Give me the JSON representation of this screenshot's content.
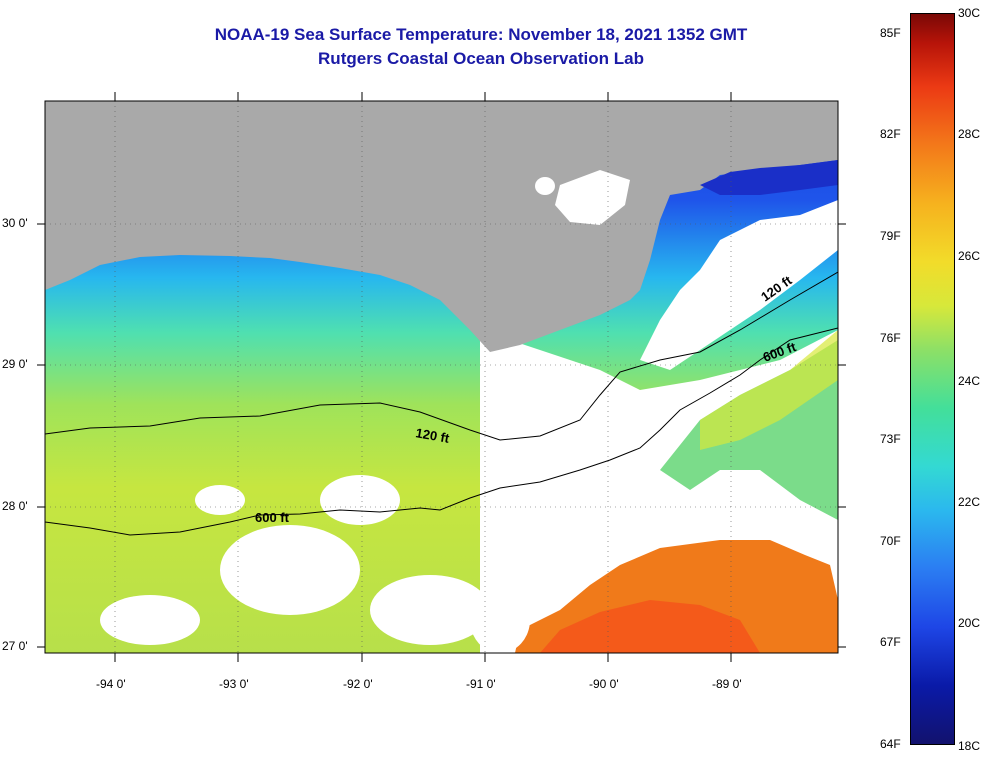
{
  "title_line1": "NOAA-19 Sea Surface Temperature:  November 18, 2021 1352 GMT",
  "title_line2": "Rutgers Coastal Ocean Observation Lab",
  "map": {
    "lon_labels": [
      "-94 0'",
      "-93 0'",
      "-92 0'",
      "-91 0'",
      "-90 0'",
      "-89 0'"
    ],
    "lat_labels": [
      "30 0'",
      "29 0'",
      "28 0'",
      "27 0'"
    ],
    "contour_labels": [
      "120 ft",
      "600 ft",
      "120 ft",
      "600 ft"
    ]
  },
  "colorbar": {
    "fahrenheit_labels": [
      "85F",
      "82F",
      "79F",
      "76F",
      "73F",
      "70F",
      "67F",
      "64F"
    ],
    "celsius_labels": [
      "30C",
      "28C",
      "26C",
      "24C",
      "22C",
      "20C",
      "18C"
    ]
  },
  "colors": {
    "title": "#1a1aa6",
    "land": "#a9a9a9",
    "cloud_nodata": "#ffffff",
    "warm_water": "#f07a1a",
    "cool_water": "#1f44e0"
  }
}
